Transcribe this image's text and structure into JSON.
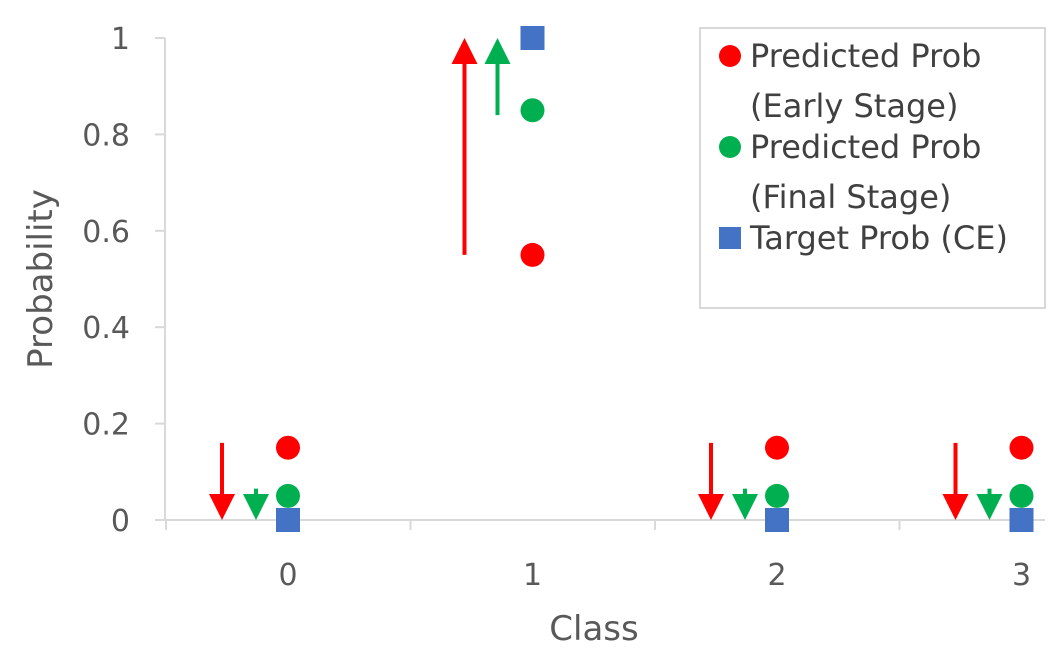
{
  "chart_data": {
    "type": "scatter",
    "xlabel": "Class",
    "ylabel": "Probability",
    "categories": [
      "0",
      "1",
      "2",
      "3"
    ],
    "ylim": [
      0,
      1
    ],
    "yticks": [
      "0",
      "0.2",
      "0.4",
      "0.6",
      "0.8",
      "1"
    ],
    "grid": false,
    "legend_position": "top-right",
    "series": [
      {
        "name": "Predicted Prob (Early Stage)",
        "legend_lines": [
          "Predicted Prob",
          "(Early Stage)"
        ],
        "marker": "circle",
        "color": "#ff0000",
        "values": [
          0.15,
          0.55,
          0.15,
          0.15
        ]
      },
      {
        "name": "Predicted Prob (Final Stage)",
        "legend_lines": [
          "Predicted Prob",
          "(Final Stage)"
        ],
        "marker": "circle",
        "color": "#00b050",
        "values": [
          0.05,
          0.85,
          0.05,
          0.05
        ]
      },
      {
        "name": "Target Prob (CE)",
        "legend_lines": [
          "Target Prob (CE)"
        ],
        "marker": "square",
        "color": "#4472c4",
        "values": [
          0,
          1,
          0,
          0
        ]
      }
    ],
    "annotations": {
      "arrows": [
        {
          "class": "0",
          "color": "#ff0000",
          "from": 0.16,
          "to": 0.0
        },
        {
          "class": "0",
          "color": "#00b050",
          "from": 0.065,
          "to": 0.0
        },
        {
          "class": "1",
          "color": "#ff0000",
          "from": 0.55,
          "to": 1.0
        },
        {
          "class": "1",
          "color": "#00b050",
          "from": 0.84,
          "to": 1.0
        },
        {
          "class": "2",
          "color": "#ff0000",
          "from": 0.16,
          "to": 0.0
        },
        {
          "class": "2",
          "color": "#00b050",
          "from": 0.065,
          "to": 0.0
        },
        {
          "class": "3",
          "color": "#ff0000",
          "from": 0.16,
          "to": 0.0
        },
        {
          "class": "3",
          "color": "#00b050",
          "from": 0.065,
          "to": 0.0
        }
      ]
    }
  }
}
